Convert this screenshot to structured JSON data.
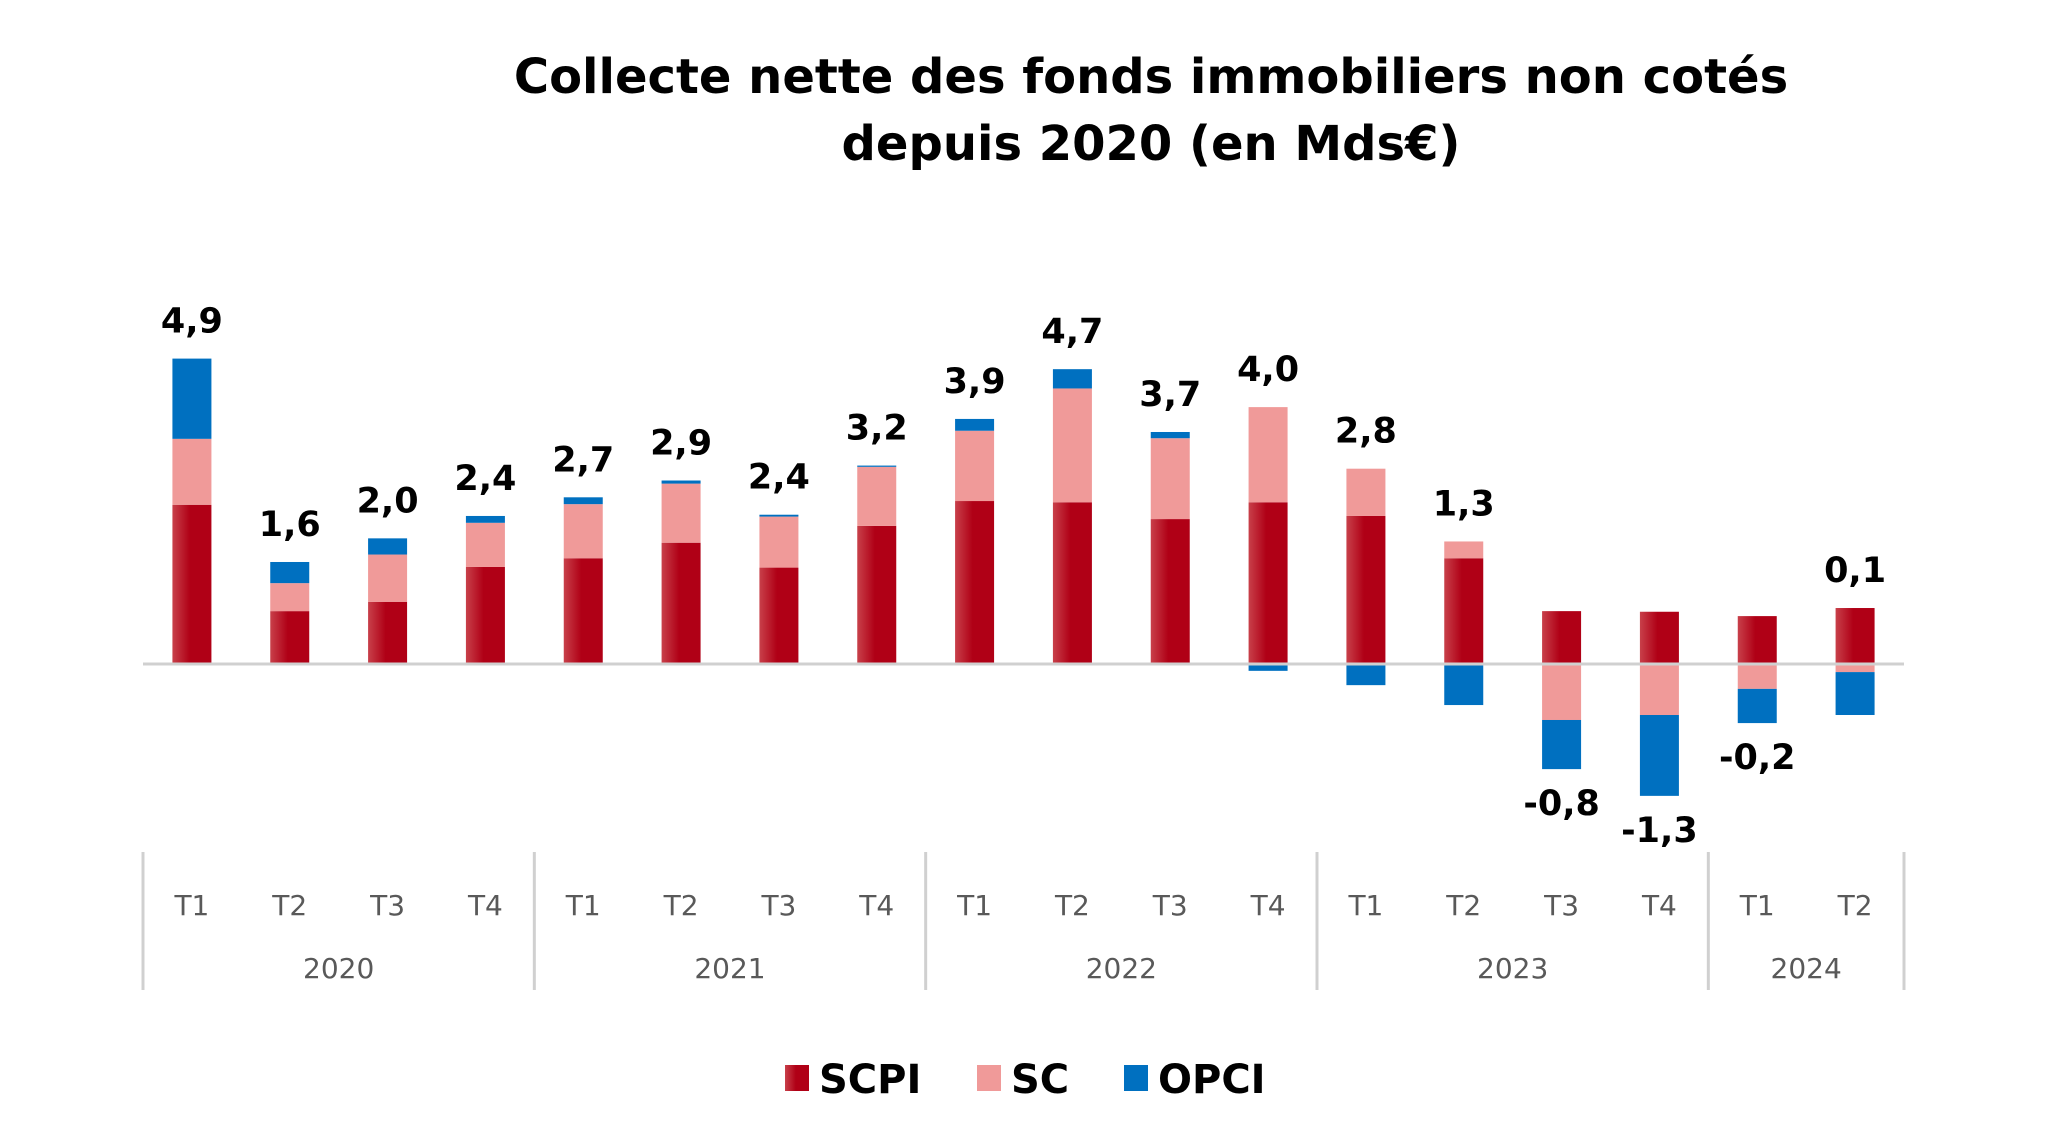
{
  "chart_data": {
    "type": "bar",
    "stacked": true,
    "title": "Collecte nette des fonds immobiliers non cotés depuis 2020 (en Mds€)",
    "title_lines": [
      "Collecte nette des fonds immobiliers non cotés",
      "depuis 2020 (en Mds€)"
    ],
    "xlabel": "",
    "ylabel": "",
    "ylim": [
      -1.6,
      5.3
    ],
    "grid": false,
    "legend_position": "bottom",
    "groups": [
      {
        "label": "2020",
        "categories": [
          "T1",
          "T2",
          "T3",
          "T4"
        ]
      },
      {
        "label": "2021",
        "categories": [
          "T1",
          "T2",
          "T3",
          "T4"
        ]
      },
      {
        "label": "2022",
        "categories": [
          "T1",
          "T2",
          "T3",
          "T4"
        ]
      },
      {
        "label": "2023",
        "categories": [
          "T1",
          "T2",
          "T3",
          "T4"
        ]
      },
      {
        "label": "2024",
        "categories": [
          "T1",
          "T2"
        ]
      }
    ],
    "categories": [
      "2020 T1",
      "2020 T2",
      "2020 T3",
      "2020 T4",
      "2021 T1",
      "2021 T2",
      "2021 T3",
      "2021 T4",
      "2022 T1",
      "2022 T2",
      "2022 T3",
      "2022 T4",
      "2023 T1",
      "2023 T2",
      "2023 T3",
      "2023 T4",
      "2024 T1",
      "2024 T2"
    ],
    "series": [
      {
        "name": "SCPI",
        "color": "#b00016",
        "color_light": "#c8404a",
        "values": [
          2.56,
          0.85,
          1.0,
          1.56,
          1.7,
          1.95,
          1.55,
          2.22,
          2.62,
          2.6,
          2.33,
          2.6,
          2.38,
          1.7,
          0.85,
          0.84,
          0.77,
          0.9
        ]
      },
      {
        "name": "SC",
        "color": "#f09a99",
        "values": [
          1.06,
          0.45,
          0.76,
          0.71,
          0.87,
          0.95,
          0.82,
          0.95,
          1.13,
          1.83,
          1.3,
          1.53,
          0.76,
          0.27,
          -0.9,
          -0.82,
          -0.4,
          -0.13
        ]
      },
      {
        "name": "OPCI",
        "color": "#0070c0",
        "values": [
          1.29,
          0.34,
          0.26,
          0.11,
          0.11,
          0.05,
          0.03,
          0.02,
          0.19,
          0.31,
          0.1,
          -0.11,
          -0.34,
          -0.66,
          -0.79,
          -1.3,
          -0.55,
          -0.69
        ]
      }
    ],
    "totals_labels": [
      "4,9",
      "1,6",
      "2,0",
      "2,4",
      "2,7",
      "2,9",
      "2,4",
      "3,2",
      "3,9",
      "4,7",
      "3,7",
      "4,0",
      "2,8",
      "1,3",
      "-0,8",
      "-1,3",
      "-0,2",
      "0,1"
    ],
    "totals": [
      4.9,
      1.6,
      2.0,
      2.4,
      2.7,
      2.9,
      2.4,
      3.2,
      3.9,
      4.7,
      3.7,
      4.0,
      2.8,
      1.3,
      -0.8,
      -1.3,
      -0.2,
      0.1
    ],
    "colors": {
      "axis": "#d0d0d0",
      "tick_text": "#595959",
      "label_text": "#000000"
    }
  }
}
